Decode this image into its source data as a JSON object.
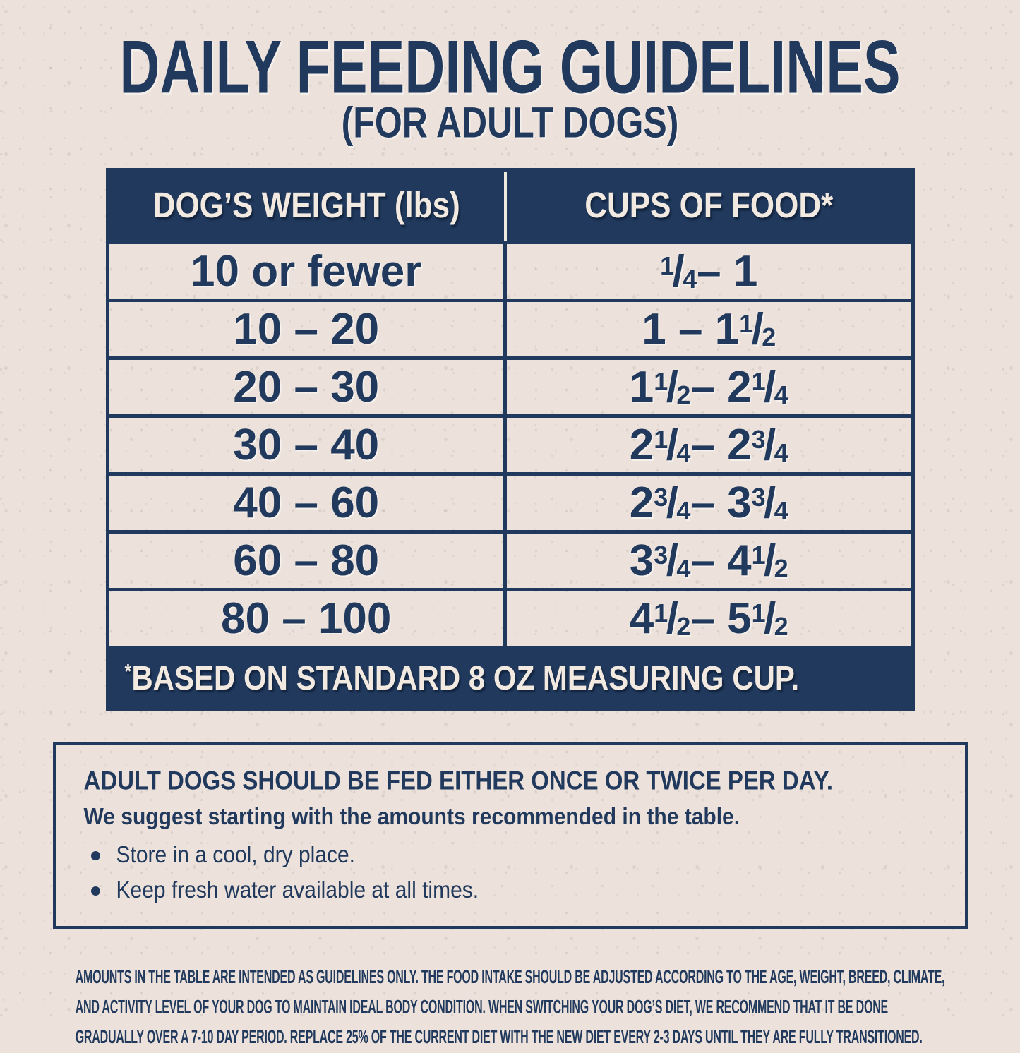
{
  "colors": {
    "navy": "#20395C",
    "paper_background": "#ECE2DB",
    "cream_text": "#F2E9E1"
  },
  "header": {
    "title": "DAILY FEEDING GUIDELINES",
    "subtitle": "(FOR ADULT DOGS)"
  },
  "table": {
    "col_headers": [
      "DOG’S WEIGHT (lbs)",
      "CUPS OF FOOD*"
    ],
    "rows": [
      {
        "weight": "10 or fewer",
        "cups": "1/4 – 1"
      },
      {
        "weight": "10 – 20",
        "cups": "1 – 1 1/2"
      },
      {
        "weight": "20 – 30",
        "cups": "1 1/2 – 2 1/4"
      },
      {
        "weight": "30 – 40",
        "cups": "2 1/4 – 2 3/4"
      },
      {
        "weight": "40 – 60",
        "cups": "2 3/4 – 3 3/4"
      },
      {
        "weight": "60 – 80",
        "cups": "3 3/4 – 4 1/2"
      },
      {
        "weight": "80 – 100",
        "cups": "4 1/2 – 5 1/2"
      }
    ],
    "footnote": "*BASED ON STANDARD 8 OZ MEASURING CUP."
  },
  "info_box": {
    "heading": "ADULT DOGS SHOULD BE FED EITHER ONCE OR TWICE PER DAY.",
    "subheading": "We suggest starting with the amounts recommended in the table.",
    "bullets": [
      "Store in a cool, dry place.",
      "Keep fresh water available at all times."
    ]
  },
  "fine_print": {
    "lines": [
      "AMOUNTS IN THE TABLE ARE INTENDED AS GUIDELINES ONLY. THE FOOD INTAKE SHOULD BE ADJUSTED ACCORDING TO THE AGE, WEIGHT, BREED, CLIMATE,",
      "AND ACTIVITY LEVEL OF YOUR DOG TO MAINTAIN IDEAL BODY CONDITION. WHEN SWITCHING YOUR DOG’S DIET, WE RECOMMEND THAT IT BE DONE",
      "GRADUALLY OVER A 7-10 DAY PERIOD. REPLACE 25% OF THE CURRENT DIET WITH THE NEW DIET EVERY 2-3 DAYS UNTIL THEY ARE FULLY TRANSITIONED."
    ]
  }
}
